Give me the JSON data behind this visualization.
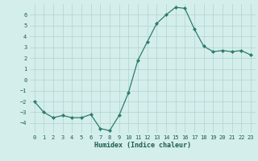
{
  "x": [
    0,
    1,
    2,
    3,
    4,
    5,
    6,
    7,
    8,
    9,
    10,
    11,
    12,
    13,
    14,
    15,
    16,
    17,
    18,
    19,
    20,
    21,
    22,
    23
  ],
  "y": [
    -2,
    -3,
    -3.5,
    -3.3,
    -3.5,
    -3.5,
    -3.2,
    -4.5,
    -4.7,
    -3.3,
    -1.2,
    1.8,
    3.5,
    5.2,
    6.0,
    6.7,
    6.6,
    4.7,
    3.1,
    2.6,
    2.7,
    2.6,
    2.7,
    2.3
  ],
  "xlabel": "Humidex (Indice chaleur)",
  "ylim": [
    -4.9,
    7.0
  ],
  "xlim": [
    -0.5,
    23.5
  ],
  "yticks": [
    -4,
    -3,
    -2,
    -1,
    0,
    1,
    2,
    3,
    4,
    5,
    6
  ],
  "xticks": [
    0,
    1,
    2,
    3,
    4,
    5,
    6,
    7,
    8,
    9,
    10,
    11,
    12,
    13,
    14,
    15,
    16,
    17,
    18,
    19,
    20,
    21,
    22,
    23
  ],
  "line_color": "#2e7d6b",
  "marker_color": "#2e7d6b",
  "bg_color": "#d4eeec",
  "grid_color": "#b0d4d0",
  "tick_label_color": "#1a5c4e",
  "xlabel_color": "#1a5c4e",
  "tick_fontsize": 5.0,
  "xlabel_fontsize": 6.0
}
